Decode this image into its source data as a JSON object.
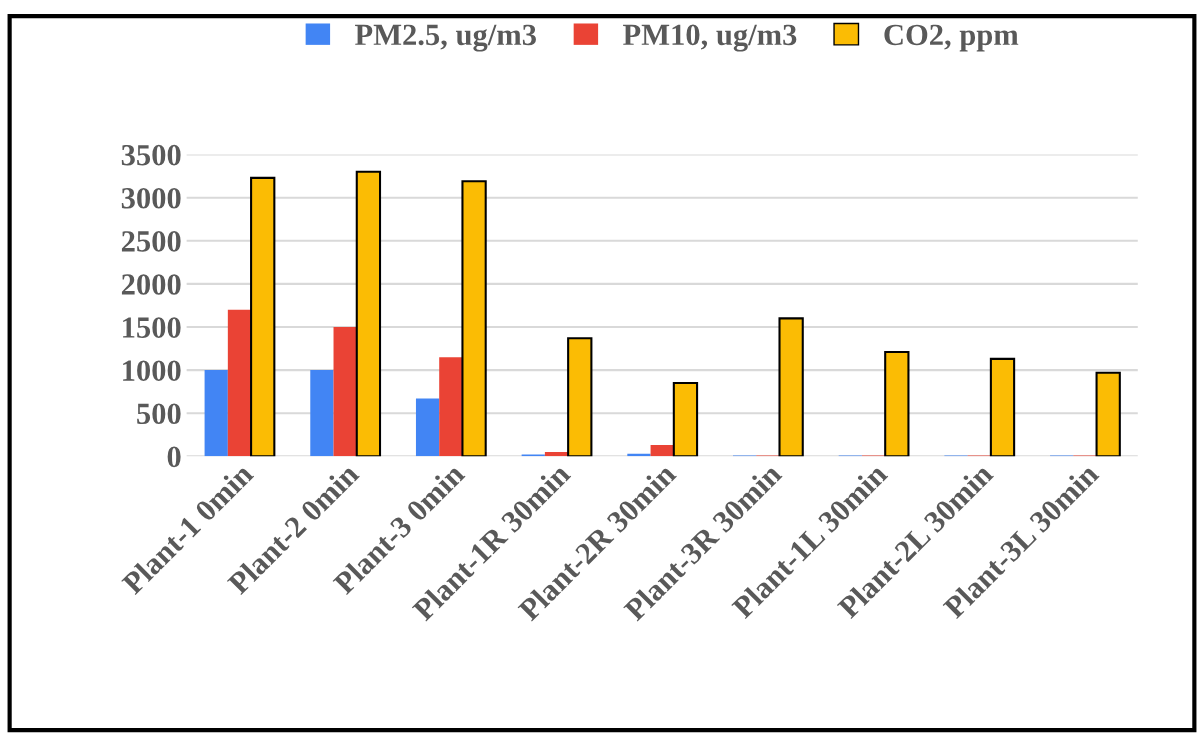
{
  "chart_data": {
    "type": "bar",
    "categories": [
      "Plant-1 0min",
      "Plant-2 0min",
      "Plant-3 0min",
      "Plant-1R 30min",
      "Plant-2R 30min",
      "Plant-3R 30min",
      "Plant-1L 30min",
      "Plant-2L 30min",
      "Plant-3L 30min"
    ],
    "series": [
      {
        "name": "PM2.5, ug/m3",
        "color": "#4285f4",
        "values": [
          1000,
          1000,
          670,
          20,
          30,
          10,
          10,
          10,
          10
        ]
      },
      {
        "name": "PM10, ug/m3",
        "color": "#ea4335",
        "values": [
          1700,
          1500,
          1150,
          50,
          130,
          10,
          10,
          10,
          10
        ]
      },
      {
        "name": "CO2, ppm",
        "color": "#fbbc04",
        "values": [
          3230,
          3300,
          3190,
          1370,
          850,
          1600,
          1210,
          1130,
          970
        ]
      }
    ],
    "ylim": [
      0,
      3500
    ],
    "yticks": [
      0,
      500,
      1000,
      1500,
      2000,
      2500,
      3000,
      3500
    ],
    "grid": "y",
    "legend": "top"
  }
}
